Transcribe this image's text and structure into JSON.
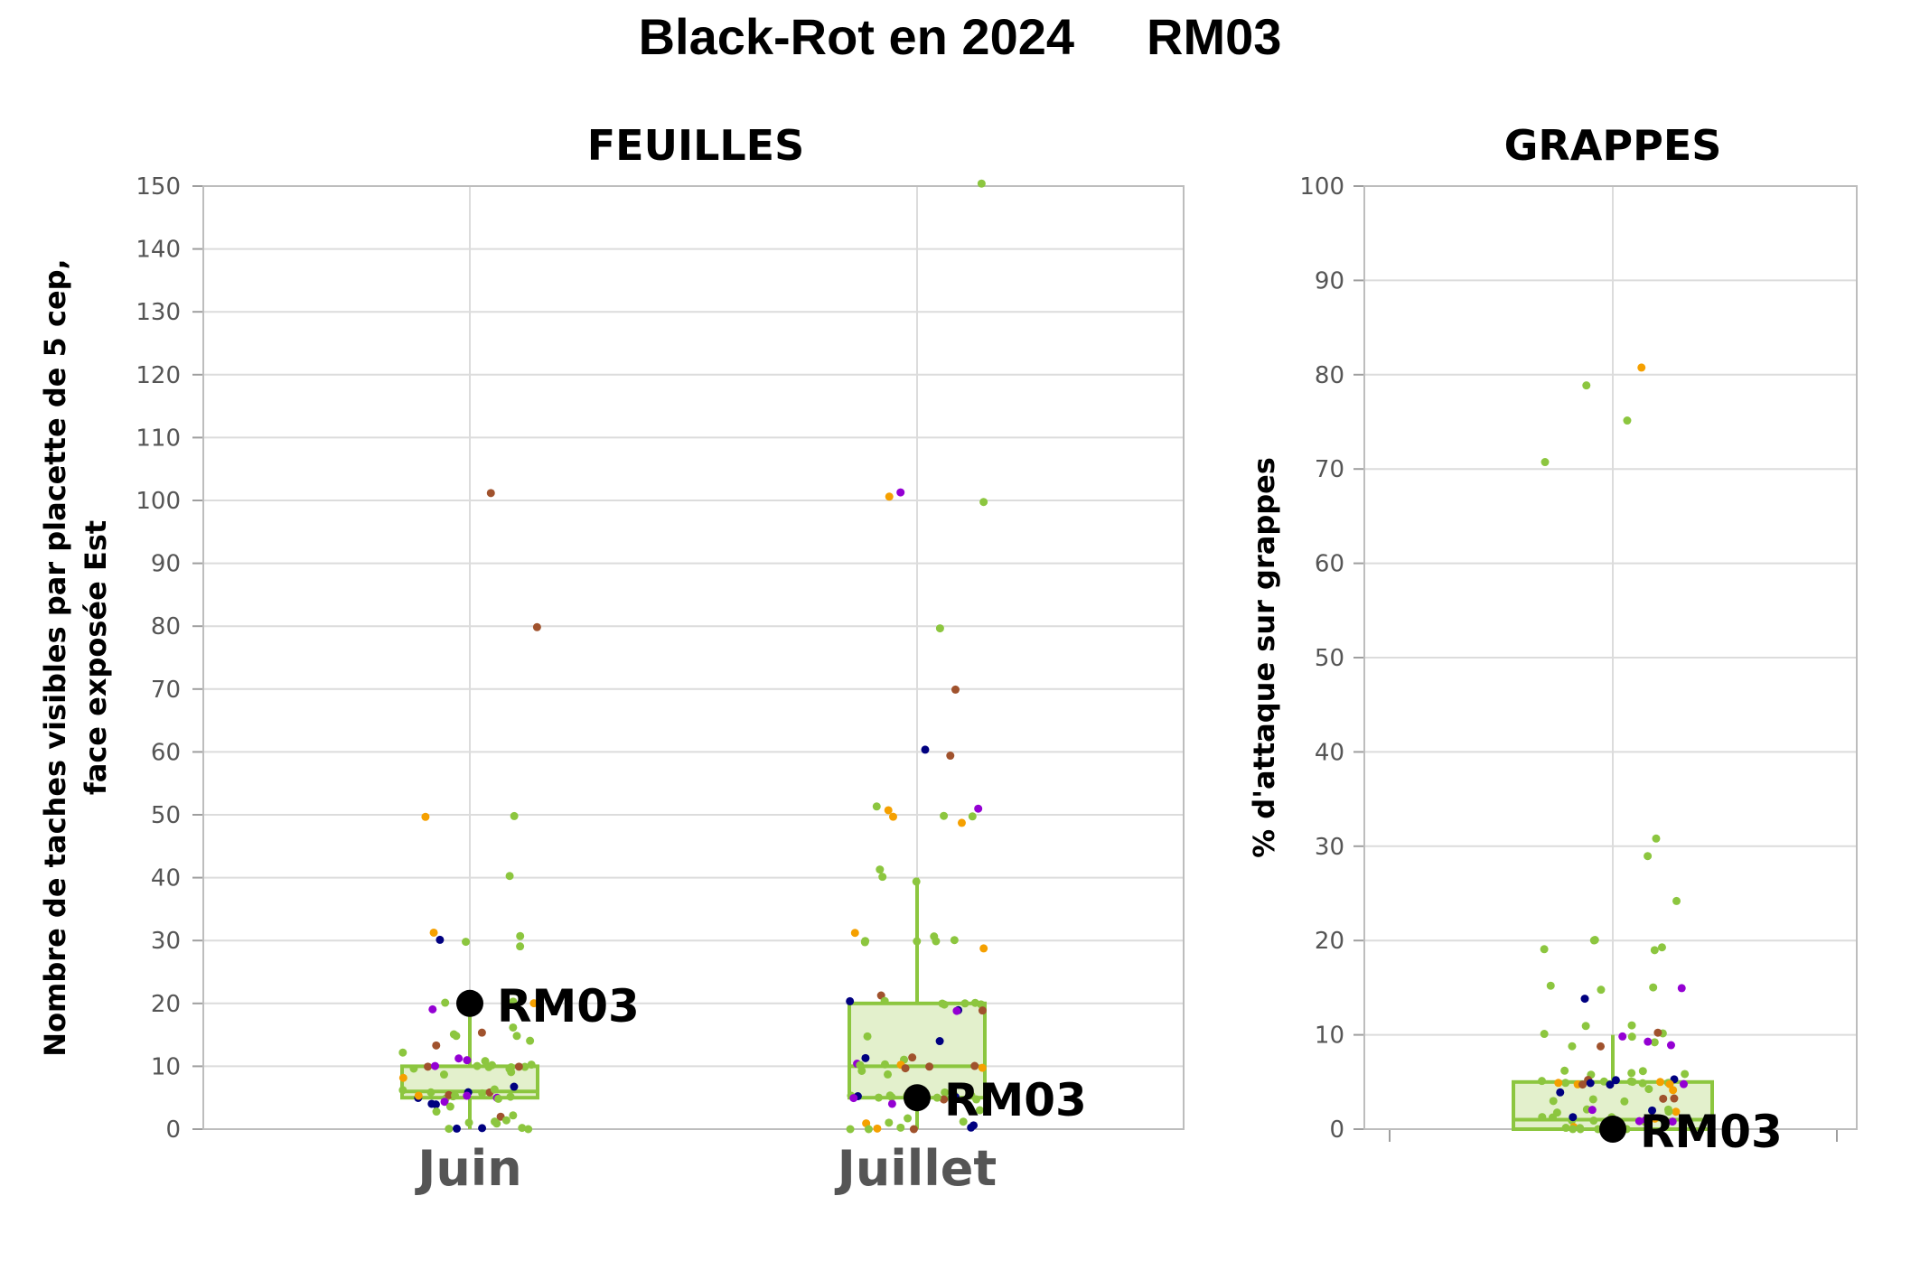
{
  "title": "Black-Rot en 2024",
  "highlight_id": "RM03",
  "chart_data": [
    {
      "type": "boxplot",
      "panel": "FEUILLES",
      "ylabel_lines": [
        "Nombre de taches visibles par placette de 5 cep,",
        "face exposée Est"
      ],
      "ylim": [
        0,
        150
      ],
      "yticks": [
        0,
        10,
        20,
        30,
        40,
        50,
        60,
        70,
        80,
        90,
        100,
        110,
        120,
        130,
        140,
        150
      ],
      "grid": true,
      "categories": [
        "Juin",
        "Juillet"
      ],
      "boxes": [
        {
          "category": "Juin",
          "q1": 5,
          "median": 6,
          "q3": 10,
          "whisker_low": 0,
          "whisker_high": 20
        },
        {
          "category": "Juillet",
          "q1": 5,
          "median": 10,
          "q3": 20,
          "whisker_low": 0,
          "whisker_high": 40
        }
      ],
      "highlight": [
        {
          "category": "Juin",
          "value": 20,
          "label": "RM03"
        },
        {
          "category": "Juillet",
          "value": 5,
          "label": "RM03"
        }
      ],
      "points": [
        {
          "category": "Juin",
          "values": [
            101,
            80,
            50,
            50,
            40,
            31,
            31,
            30,
            30,
            29,
            20,
            20,
            20,
            19,
            16,
            15,
            15,
            15,
            15,
            14,
            13,
            12,
            11,
            11,
            11,
            10,
            10,
            10,
            10,
            10,
            10,
            10,
            10,
            10,
            10,
            10,
            9,
            9,
            8,
            7,
            6,
            6,
            6,
            6,
            6,
            6,
            5,
            5,
            5,
            5,
            5,
            5,
            5,
            5,
            5,
            5,
            4,
            4,
            4,
            4,
            3,
            2,
            2,
            1,
            1,
            1,
            1,
            0,
            0,
            0,
            0,
            0
          ]
        },
        {
          "category": "Juillet",
          "values": [
            150,
            101,
            101,
            100,
            80,
            70,
            60,
            59,
            51,
            51,
            51,
            50,
            50,
            50,
            49,
            41,
            40,
            39,
            31,
            31,
            30,
            30,
            30,
            30,
            30,
            29,
            21,
            20,
            20,
            20,
            20,
            20,
            20,
            20,
            19,
            19,
            19,
            15,
            14,
            11,
            11,
            11,
            10,
            10,
            10,
            10,
            10,
            10,
            10,
            10,
            9,
            9,
            6,
            6,
            5,
            5,
            5,
            5,
            5,
            5,
            5,
            5,
            5,
            5,
            5,
            5,
            5,
            5,
            5,
            5,
            4,
            4,
            3,
            2,
            1,
            1,
            1,
            1,
            0,
            0,
            0,
            0,
            0,
            0
          ]
        }
      ]
    },
    {
      "type": "boxplot",
      "panel": "GRAPPES",
      "ylabel_lines": [
        "% d'attaque sur grappes"
      ],
      "ylim": [
        0,
        100
      ],
      "yticks": [
        0,
        10,
        20,
        30,
        40,
        50,
        60,
        70,
        80,
        90,
        100
      ],
      "grid": true,
      "categories": [
        ""
      ],
      "boxes": [
        {
          "category": "",
          "q1": 0,
          "median": 1,
          "q3": 5,
          "whisker_low": 0,
          "whisker_high": 10
        }
      ],
      "highlight": [
        {
          "category": "",
          "value": 0,
          "label": "RM03"
        }
      ],
      "points": [
        {
          "category": "",
          "values": [
            81,
            79,
            75,
            71,
            31,
            29,
            24,
            20,
            20,
            19,
            19,
            19,
            15,
            15,
            15,
            15,
            14,
            11,
            11,
            10,
            10,
            10,
            10,
            10,
            9,
            9,
            9,
            9,
            9,
            6,
            6,
            6,
            6,
            6,
            5,
            5,
            5,
            5,
            5,
            5,
            5,
            5,
            5,
            5,
            5,
            5,
            5,
            5,
            5,
            5,
            5,
            5,
            4,
            4,
            4,
            3,
            3,
            3,
            3,
            3,
            2,
            2,
            2,
            2,
            2,
            2,
            2,
            1,
            1,
            1,
            1,
            1,
            1,
            1,
            1,
            1,
            1,
            1,
            1,
            0,
            0,
            0,
            0,
            0,
            0,
            0,
            0,
            0
          ]
        }
      ]
    }
  ],
  "colors": {
    "box_stroke": "#8cc63f",
    "box_fill": "#e3f0cc",
    "point_palette": [
      "#8cc63f",
      "#8cc63f",
      "#8cc63f",
      "#8cc63f",
      "#8cc63f",
      "#8cc63f",
      "#a0522d",
      "#f5a000",
      "#9400d3",
      "#000080"
    ],
    "highlight": "#000000"
  }
}
